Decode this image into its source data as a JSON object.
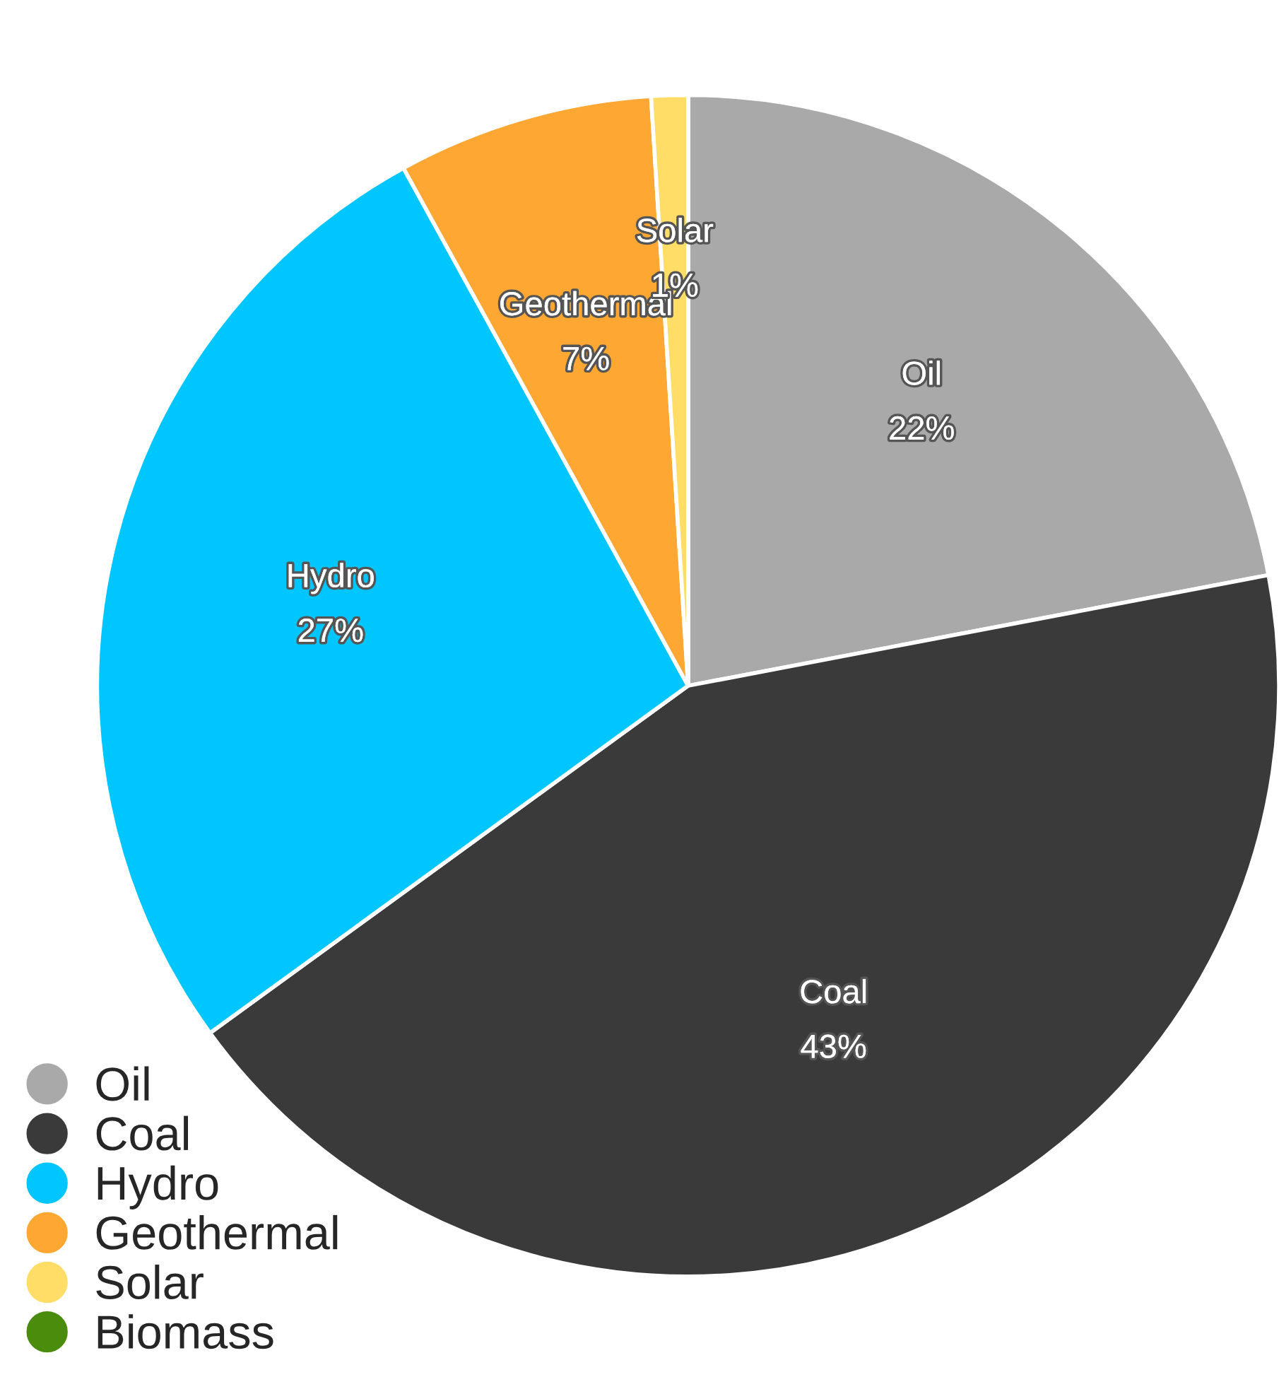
{
  "chart_data": {
    "type": "pie",
    "categories": [
      "Oil",
      "Coal",
      "Hydro",
      "Geothermal",
      "Solar",
      "Biomass"
    ],
    "values": [
      22,
      43,
      27,
      7,
      1,
      0
    ],
    "value_labels": [
      "22%",
      "43%",
      "27%",
      "7%",
      "1%",
      null
    ],
    "colors": [
      "#a9a9a9",
      "#3a3a3a",
      "#00c6ff",
      "#ffa733",
      "#ffdd66",
      "#4a8c0c"
    ],
    "legend": "bottom left"
  }
}
